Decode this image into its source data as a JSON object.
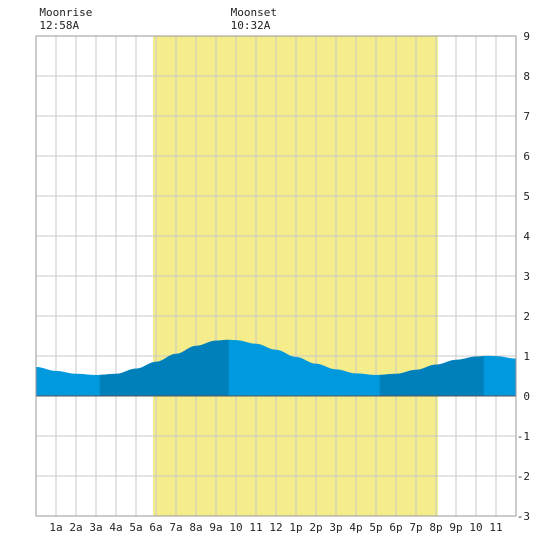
{
  "chart_data": {
    "type": "area",
    "title": "",
    "xlabel": "",
    "ylabel": "",
    "x_tick_labels": [
      "1a",
      "2a",
      "3a",
      "4a",
      "5a",
      "6a",
      "7a",
      "8a",
      "9a",
      "10",
      "11",
      "12",
      "1p",
      "2p",
      "3p",
      "4p",
      "5p",
      "6p",
      "7p",
      "8p",
      "9p",
      "10",
      "11"
    ],
    "y_ticks": [
      9,
      8,
      7,
      6,
      5,
      4,
      3,
      2,
      1,
      0,
      -1,
      -2,
      -3
    ],
    "ylim": [
      -3,
      9
    ],
    "xlim_hours": [
      0,
      24
    ],
    "grid": true,
    "daylight": {
      "start_hour": 5.85,
      "end_hour": 20.1
    },
    "moon_events": [
      {
        "label": "Moonrise",
        "time": "12:58A",
        "hour": 0.97
      },
      {
        "label": "Moonset",
        "time": "10:32A",
        "hour": 10.53
      }
    ],
    "tide_series": {
      "name": "",
      "x_hours": [
        0,
        1,
        2,
        3,
        4,
        5,
        6,
        7,
        8,
        9,
        9.6,
        10,
        11,
        12,
        13,
        14,
        15,
        16,
        17,
        18,
        19,
        20,
        21,
        22,
        22.6,
        23,
        24
      ],
      "values": [
        0.72,
        0.62,
        0.55,
        0.52,
        0.55,
        0.68,
        0.85,
        1.05,
        1.25,
        1.38,
        1.4,
        1.39,
        1.3,
        1.15,
        0.97,
        0.8,
        0.66,
        0.56,
        0.52,
        0.55,
        0.65,
        0.78,
        0.9,
        0.98,
        1.0,
        0.99,
        0.93
      ]
    },
    "fill_bands_hours": [
      {
        "from": 0,
        "to": 3.2,
        "color": "#0099dd"
      },
      {
        "from": 3.2,
        "to": 9.65,
        "color": "#0080bb"
      },
      {
        "from": 9.65,
        "to": 17.2,
        "color": "#0099dd"
      },
      {
        "from": 17.2,
        "to": 22.4,
        "color": "#0080bb"
      },
      {
        "from": 22.4,
        "to": 24,
        "color": "#0099dd"
      }
    ],
    "colors": {
      "daylight": "#f5ec8c",
      "grid": "#c8c8c8",
      "zero_line": "#555555"
    }
  }
}
